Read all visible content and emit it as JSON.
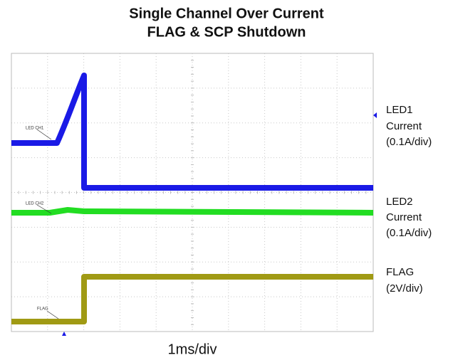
{
  "chart_data": {
    "type": "oscilloscope",
    "title": [
      "Single Channel Over Current",
      "FLAG & SCP Shutdown"
    ],
    "x_label": "1ms/div",
    "channels": [
      {
        "name": [
          "LED1",
          "Current",
          "(0.1A/div)"
        ],
        "probe_label": "LED CH1",
        "color": "#1a1ae6"
      },
      {
        "name": [
          "LED2",
          "Current",
          "(0.1A/div)"
        ],
        "probe_label": "LED CH2",
        "color": "#22dd22"
      },
      {
        "name": [
          "FLAG",
          "(2V/div)"
        ],
        "probe_label": "FLAG",
        "color": "#a09a14"
      }
    ]
  }
}
